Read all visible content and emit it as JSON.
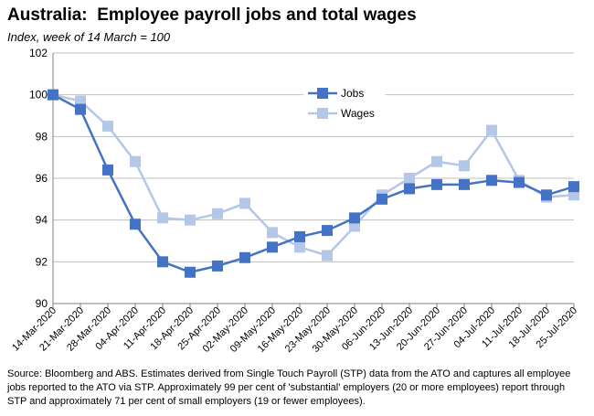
{
  "title": "Australia:  Employee payroll jobs and total wages",
  "subtitle": "Index, week of 14 March = 100",
  "source": "Source: Bloomberg and ABS.  Estimates derived from Single Touch Payroll (STP) data from the ATO and captures all employee jobs reported to the ATO via STP.  Approximately 99 per cent of 'substantial' employers (20 or more employees) report through STP and approximately 71 per cent of small employers (19 or fewer employees).",
  "colors": {
    "jobs": "#4472C4",
    "wages": "#B4C7E7",
    "grid": "#BFBFBF",
    "axis": "#808080"
  },
  "chart_data": {
    "type": "line",
    "title": "Australia:  Employee payroll jobs and total wages",
    "subtitle": "Index, week of 14 March = 100",
    "xlabel": "",
    "ylabel": "",
    "ylim": [
      90,
      102
    ],
    "yticks": [
      90,
      92,
      94,
      96,
      98,
      100,
      102
    ],
    "grid": true,
    "legend": "inside upper-center",
    "categories": [
      "14-Mar-2020",
      "21-Mar-2020",
      "28-Mar-2020",
      "04-Apr-2020",
      "11-Apr-2020",
      "18-Apr-2020",
      "25-Apr-2020",
      "02-May-2020",
      "09-May-2020",
      "16-May-2020",
      "23-May-2020",
      "30-May-2020",
      "06-Jun-2020",
      "13-Jun-2020",
      "20-Jun-2020",
      "27-Jun-2020",
      "04-Jul-2020",
      "11-Jul-2020",
      "18-Jul-2020",
      "25-Jul-2020"
    ],
    "series": [
      {
        "name": "Jobs",
        "color": "#4472C4",
        "values": [
          100.0,
          99.3,
          96.4,
          93.8,
          92.0,
          91.5,
          91.8,
          92.2,
          92.7,
          93.2,
          93.5,
          94.1,
          95.0,
          95.5,
          95.7,
          95.7,
          95.9,
          95.8,
          95.2,
          95.6
        ]
      },
      {
        "name": "Wages",
        "color": "#B4C7E7",
        "values": [
          100.0,
          99.7,
          98.5,
          96.8,
          94.1,
          94.0,
          94.3,
          94.8,
          93.4,
          92.7,
          92.3,
          93.7,
          95.2,
          96.0,
          96.8,
          96.6,
          98.3,
          95.9,
          95.1,
          95.2
        ]
      }
    ]
  }
}
